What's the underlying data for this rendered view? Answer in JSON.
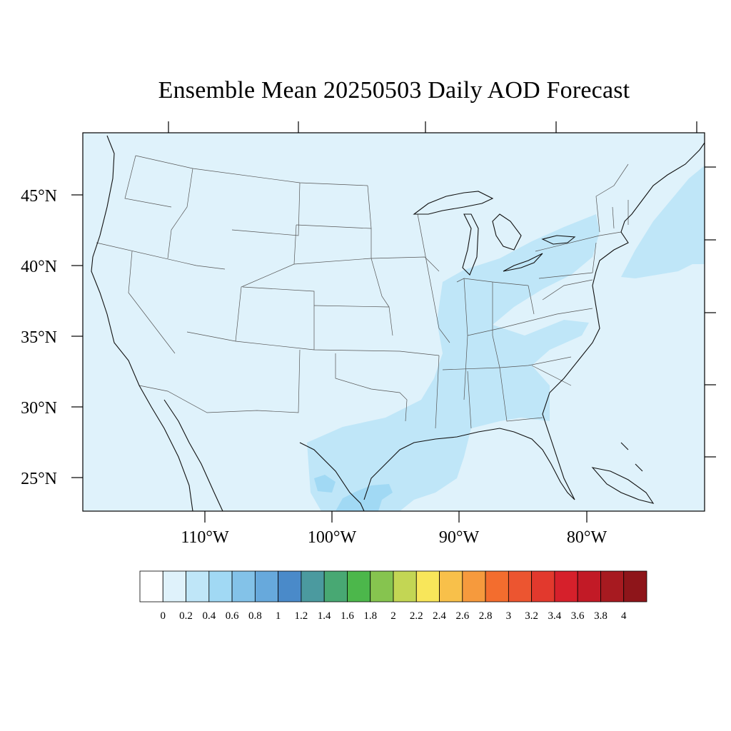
{
  "title": "Ensemble Mean 20250503 Daily AOD Forecast",
  "map": {
    "lat_labels": [
      "45°N",
      "40°N",
      "35°N",
      "30°N",
      "25°N"
    ],
    "lon_labels": [
      "110°W",
      "100°W",
      "90°W",
      "80°W"
    ],
    "background_color": "#dff2fb"
  },
  "colorbar": {
    "labels": [
      "0",
      "0.2",
      "0.4",
      "0.6",
      "0.8",
      "1",
      "1.2",
      "1.4",
      "1.6",
      "1.8",
      "2",
      "2.2",
      "2.4",
      "2.6",
      "2.8",
      "3",
      "3.2",
      "3.4",
      "3.6",
      "3.8",
      "4"
    ],
    "colors": [
      "#ffffff",
      "#dff2fb",
      "#bfe6f8",
      "#a1d9f4",
      "#83c2e8",
      "#67a9dc",
      "#4a8ac9",
      "#4b9a9f",
      "#48a873",
      "#4cb74b",
      "#86c44f",
      "#c3d654",
      "#f8e65a",
      "#f8c04a",
      "#f69a3d",
      "#f36d2e",
      "#ec5530",
      "#e2392d",
      "#d6202b",
      "#c21a26",
      "#a71a20",
      "#8e151a"
    ]
  }
}
